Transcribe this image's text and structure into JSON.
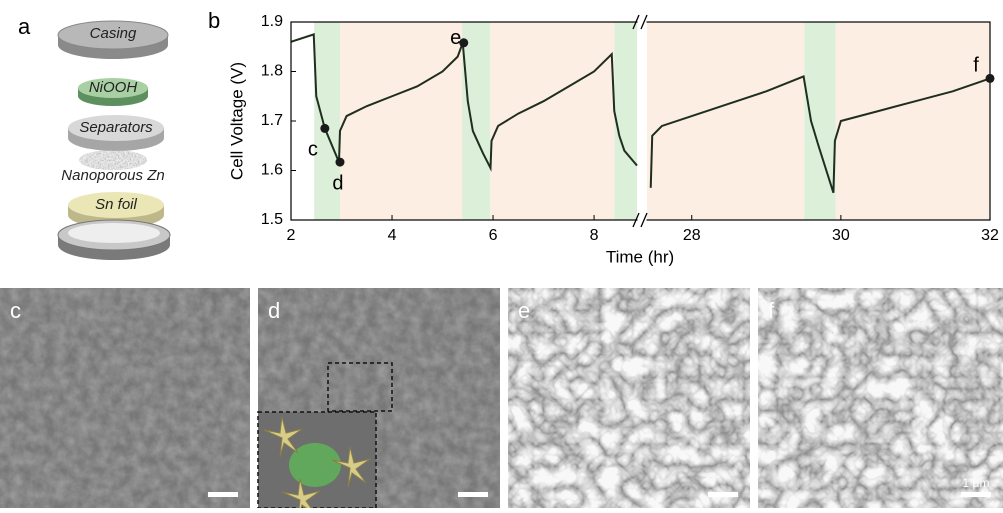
{
  "panel_a": {
    "label": "a",
    "layers": [
      "Casing",
      "NiOOH",
      "Separators",
      "Nanoporous Zn",
      "Sn foil"
    ]
  },
  "chart_data": {
    "type": "line",
    "label": "b",
    "xlabel": "Time (hr)",
    "ylabel": "Cell Voltage (V)",
    "ylim": [
      1.5,
      1.9
    ],
    "yticks": [
      1.5,
      1.6,
      1.7,
      1.8,
      1.9
    ],
    "color": "#1f2e1f",
    "charge_color": "#fdeee3",
    "discharge_color": "#dcefd9",
    "segments": [
      {
        "xlim": [
          2,
          8.85
        ],
        "xticks": [
          2,
          4,
          6,
          8
        ],
        "x": [
          2.0,
          2.45,
          2.5,
          2.67,
          2.95,
          2.97,
          3.1,
          3.5,
          4.0,
          4.5,
          5.0,
          5.3,
          5.4,
          5.5,
          5.6,
          5.8,
          5.95,
          5.97,
          6.1,
          6.5,
          7.0,
          7.5,
          8.0,
          8.35,
          8.4,
          8.5,
          8.6,
          8.85
        ],
        "values": [
          1.86,
          1.875,
          1.75,
          1.685,
          1.617,
          1.68,
          1.71,
          1.73,
          1.75,
          1.77,
          1.8,
          1.83,
          1.858,
          1.74,
          1.68,
          1.635,
          1.605,
          1.66,
          1.69,
          1.715,
          1.74,
          1.77,
          1.8,
          1.835,
          1.72,
          1.67,
          1.64,
          1.61
        ],
        "discharge": [
          [
            2.46,
            2.97
          ],
          [
            5.39,
            5.94
          ],
          [
            8.4,
            8.85
          ]
        ],
        "charge": [
          [
            2.97,
            5.39
          ],
          [
            5.94,
            8.4
          ]
        ],
        "points": [
          {
            "label": "c",
            "x": 2.67,
            "y": 1.685
          },
          {
            "label": "d",
            "x": 2.97,
            "y": 1.617
          },
          {
            "label": "e",
            "x": 5.42,
            "y": 1.858
          }
        ]
      },
      {
        "xlim": [
          27.4,
          32
        ],
        "xticks": [
          28,
          30,
          32
        ],
        "x": [
          27.45,
          27.47,
          27.6,
          28.0,
          28.5,
          29.0,
          29.5,
          29.6,
          29.7,
          29.9,
          29.92,
          30.0,
          30.5,
          31.0,
          31.5,
          32.0
        ],
        "values": [
          1.565,
          1.67,
          1.69,
          1.71,
          1.735,
          1.76,
          1.79,
          1.7,
          1.65,
          1.555,
          1.66,
          1.7,
          1.72,
          1.74,
          1.76,
          1.786
        ],
        "discharge": [
          [
            29.51,
            29.93
          ]
        ],
        "charge": [
          [
            27.4,
            29.51
          ],
          [
            29.93,
            32
          ]
        ],
        "points": [
          {
            "label": "f",
            "x": 32,
            "y": 1.786
          }
        ]
      }
    ]
  },
  "sem_panels": [
    {
      "label": "c"
    },
    {
      "label": "d"
    },
    {
      "label": "e"
    },
    {
      "label": "f",
      "scale_bar": "1 μm"
    }
  ]
}
